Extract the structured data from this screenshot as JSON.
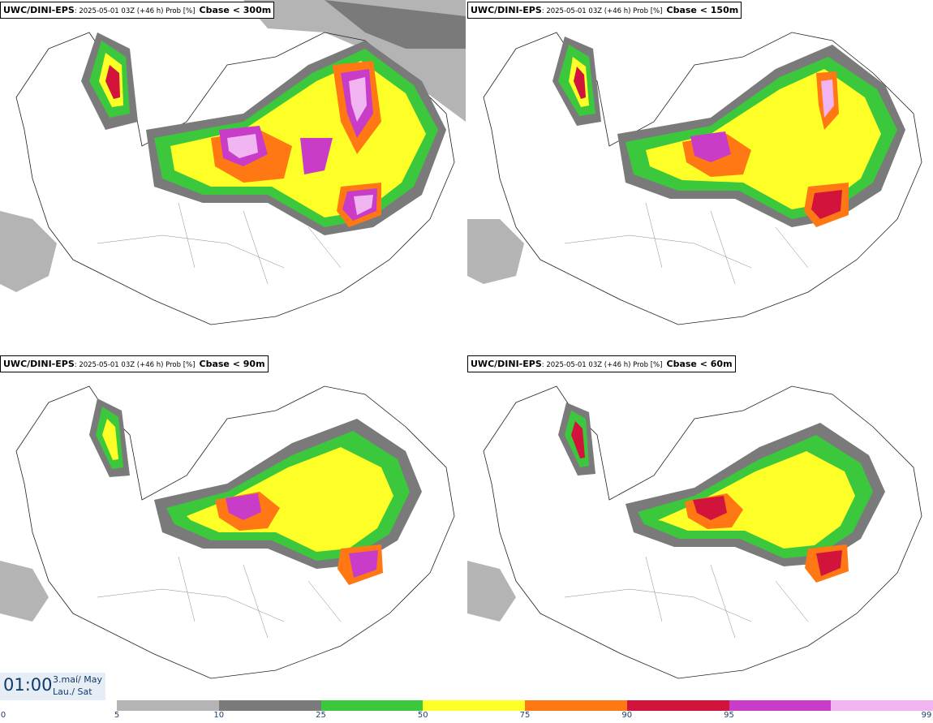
{
  "panels": [
    {
      "model": "UWC/DINI-EPS",
      "run": ": 2025-05-01 03Z (+46 h) Prob [%]",
      "param": "Cbase < 300m"
    },
    {
      "model": "UWC/DINI-EPS",
      "run": ": 2025-05-01 03Z (+46 h) Prob [%]",
      "param": "Cbase < 150m"
    },
    {
      "model": "UWC/DINI-EPS",
      "run": ": 2025-05-01 03Z (+46 h) Prob [%]",
      "param": "Cbase < 90m"
    },
    {
      "model": "UWC/DINI-EPS",
      "run": ": 2025-05-01 03Z (+46 h) Prob [%]",
      "param": "Cbase < 60m"
    }
  ],
  "valid_time": {
    "time": "01:00",
    "date_line1": "3.maí/ May",
    "date_line2": "Lau./ Sat"
  },
  "legend": {
    "ticks": [
      "0",
      "5",
      "10",
      "25",
      "50",
      "75",
      "90",
      "95",
      "99"
    ],
    "colors": [
      "#b4b4b4",
      "#7a7a7a",
      "#3cc83c",
      "#ffff28",
      "#ff7814",
      "#d2143c",
      "#c83cc8",
      "#f0b4f0"
    ]
  }
}
